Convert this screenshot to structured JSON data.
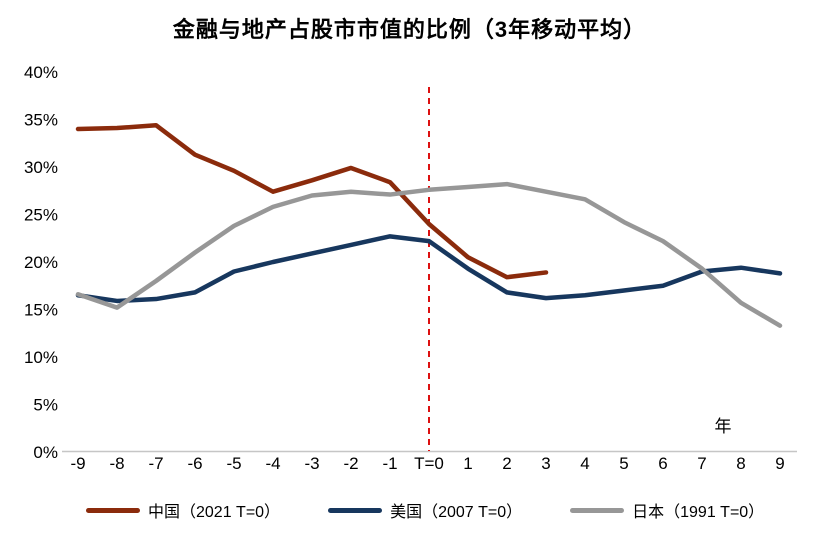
{
  "chart_data": {
    "type": "line",
    "title": "金融与地产占股市市值的比例（3年移动平均）",
    "x_axis_unit_label": "年",
    "categories": [
      "-9",
      "-8",
      "-7",
      "-6",
      "-5",
      "-4",
      "-3",
      "-2",
      "-1",
      "T=0",
      "1",
      "2",
      "3",
      "4",
      "5",
      "6",
      "7",
      "8",
      "9"
    ],
    "y_ticks": [
      "0%",
      "5%",
      "10%",
      "15%",
      "20%",
      "25%",
      "30%",
      "35%",
      "40%"
    ],
    "ylim": [
      0,
      40
    ],
    "grid": "off",
    "legend_position": "bottom",
    "marker_line": {
      "at": "T=0",
      "color": "#DD1111",
      "style": "dashed"
    },
    "axis_line_color": "#C6C6C6",
    "series": [
      {
        "name": "中国（2021 T=0）",
        "color": "#8B2B0C",
        "values": [
          34.0,
          34.1,
          34.4,
          31.3,
          29.6,
          27.4,
          28.6,
          29.9,
          28.4,
          24.0,
          20.5,
          18.4,
          18.9,
          null,
          null,
          null,
          null,
          null,
          null
        ]
      },
      {
        "name": "美国（2007 T=0）",
        "color": "#17375E",
        "values": [
          16.5,
          15.9,
          16.1,
          16.8,
          19.0,
          20.0,
          20.9,
          21.8,
          22.7,
          22.2,
          19.3,
          16.8,
          16.2,
          16.5,
          17.0,
          17.5,
          19.0,
          19.4,
          18.8
        ]
      },
      {
        "name": "日本（1991 T=0）",
        "color": "#979797",
        "values": [
          16.6,
          15.2,
          18.0,
          21.0,
          23.8,
          25.8,
          27.0,
          27.4,
          27.1,
          27.6,
          27.9,
          28.2,
          27.4,
          26.6,
          24.2,
          22.2,
          19.3,
          15.7,
          13.3
        ]
      }
    ]
  }
}
